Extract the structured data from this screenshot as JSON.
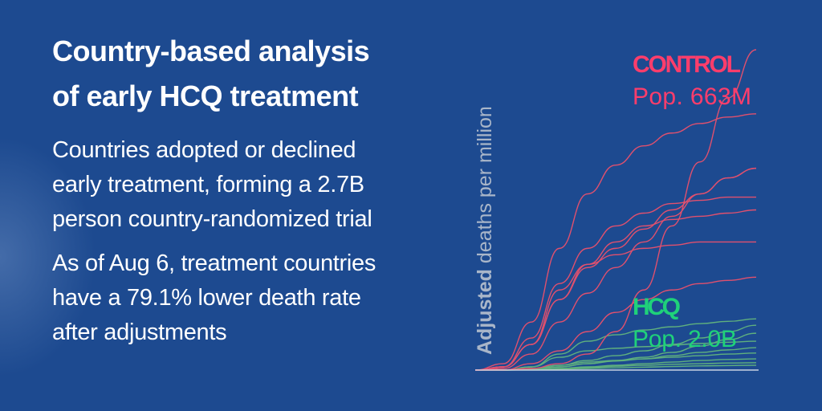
{
  "headline": {
    "title_line1": "Country-based analysis",
    "title_line2": "of early HCQ treatment"
  },
  "paragraphs": [
    {
      "lines": [
        "Countries adopted or declined",
        "early treatment, forming a 2.7B",
        "person country-randomized trial"
      ]
    },
    {
      "lines": [
        "As of Aug 6, treatment countries",
        "have a 79.1% lower death rate",
        "after adjustments"
      ]
    }
  ],
  "colors": {
    "background": "#1d4a90",
    "control": "#e0506e",
    "control_label": "#ff3d6b",
    "hcq": "#5fb07e",
    "hcq_label": "#1fd17a",
    "axis_label": "#a9b6c9"
  },
  "chart_data": {
    "type": "line",
    "ylabel_bold": "Adjusted",
    "ylabel_rest": " deaths per million",
    "xlabel": "",
    "x": [
      0,
      10,
      20,
      30,
      40,
      50,
      60,
      70,
      80,
      90,
      100
    ],
    "xlim": [
      0,
      100
    ],
    "ylim": [
      0,
      100
    ],
    "grid": false,
    "groups": [
      {
        "name": "CONTROL",
        "subtitle": "Pop. 663M",
        "series": [
          {
            "name": "control-1",
            "values": [
              0,
              0,
              0.5,
              2,
              5,
              12,
              25,
              45,
              65,
              85,
              100
            ]
          },
          {
            "name": "control-2",
            "values": [
              0,
              2,
              15,
              38,
              55,
              64,
              70,
              74,
              77,
              79,
              80
            ]
          },
          {
            "name": "control-3",
            "values": [
              0,
              1,
              8,
              22,
              32,
              38,
              44,
              50,
              55,
              60,
              63
            ]
          },
          {
            "name": "control-4",
            "values": [
              0,
              0.5,
              5,
              15,
              24,
              32,
              40,
              48,
              55,
              60,
              63
            ]
          },
          {
            "name": "control-5",
            "values": [
              0,
              1,
              10,
              27,
              38,
              45,
              49,
              52,
              53,
              54,
              54
            ]
          },
          {
            "name": "control-6",
            "values": [
              0,
              1,
              8,
              22,
              33,
              40,
              45,
              47,
              48,
              49,
              50
            ]
          },
          {
            "name": "control-7",
            "values": [
              0,
              1,
              8,
              25,
              33,
              36,
              38,
              39,
              40,
              40,
              40
            ]
          },
          {
            "name": "control-8",
            "values": [
              0,
              0,
              2,
              6,
              12,
              18,
              22,
              25,
              27,
              28,
              29
            ]
          }
        ]
      },
      {
        "name": "HCQ",
        "subtitle": "Pop. 2.0B",
        "series": [
          {
            "name": "hcq-1",
            "values": [
              0,
              0,
              1,
              5,
              9,
              11,
              12.5,
              13.5,
              14.5,
              15.2,
              16
            ]
          },
          {
            "name": "hcq-2",
            "values": [
              0,
              0,
              0.5,
              1.5,
              3,
              4.5,
              6,
              8,
              10,
              12,
              14
            ]
          },
          {
            "name": "hcq-3",
            "values": [
              0,
              0,
              0.5,
              1,
              2,
              3,
              4,
              5.5,
              7.5,
              9.5,
              11.5
            ]
          },
          {
            "name": "hcq-4",
            "values": [
              0,
              0,
              1,
              4,
              6,
              6.8,
              7.3,
              7.8,
              8.3,
              8.7,
              9
            ]
          },
          {
            "name": "hcq-5",
            "values": [
              0,
              0,
              0.3,
              1,
              2,
              2.8,
              3.5,
              4.5,
              5.5,
              6.3,
              7
            ]
          },
          {
            "name": "hcq-6",
            "values": [
              0,
              0,
              0.5,
              1.5,
              2.5,
              3,
              3.5,
              4,
              4.5,
              5,
              5.3
            ]
          },
          {
            "name": "hcq-7",
            "values": [
              0,
              0,
              0.2,
              0.5,
              1,
              1.5,
              2,
              2.5,
              3,
              3.3,
              3.5
            ]
          },
          {
            "name": "hcq-8",
            "values": [
              0,
              0,
              0.2,
              0.5,
              0.8,
              1.2,
              1.5,
              1.8,
              2,
              2.2,
              2.3
            ]
          },
          {
            "name": "hcq-9",
            "values": [
              0,
              0,
              0.1,
              0.3,
              0.5,
              0.7,
              0.9,
              1.1,
              1.3,
              1.4,
              1.5
            ]
          }
        ]
      }
    ]
  }
}
